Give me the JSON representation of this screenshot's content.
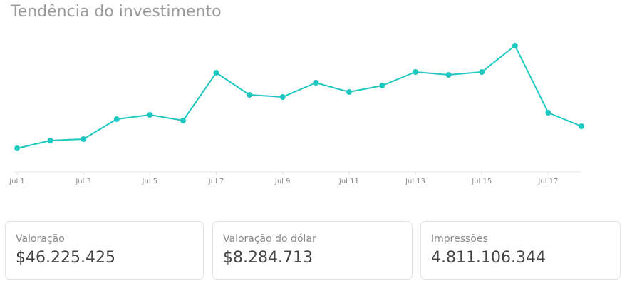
{
  "chart_data": {
    "type": "line",
    "title": "Tendência do investimento",
    "categories": [
      "Jul 1",
      null,
      "Jul 3",
      null,
      "Jul 5",
      null,
      "Jul 7",
      null,
      "Jul 9",
      null,
      "Jul 11",
      null,
      "Jul 13",
      null,
      "Jul 15",
      null,
      "Jul 17",
      null
    ],
    "values": [
      16.5,
      22,
      23,
      37,
      40,
      36,
      69.5,
      54,
      52.5,
      62.5,
      56,
      60.5,
      70,
      68,
      70,
      88.5,
      41.5,
      32
    ],
    "ylim": [
      0,
      100
    ],
    "color": "#1ec8c0"
  },
  "cards": [
    {
      "label": "Valoração",
      "value": "$46.225.425"
    },
    {
      "label": "Valoração do dólar",
      "value": "$8.284.713"
    },
    {
      "label": "Impressões",
      "value": "4.811.106.344"
    }
  ]
}
